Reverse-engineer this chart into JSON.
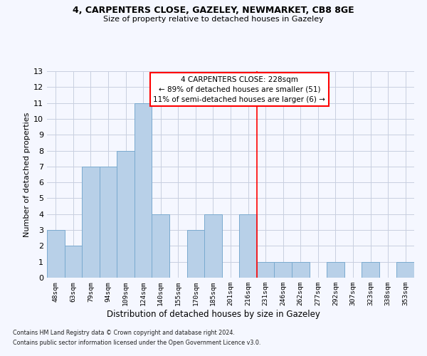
{
  "title1": "4, CARPENTERS CLOSE, GAZELEY, NEWMARKET, CB8 8GE",
  "title2": "Size of property relative to detached houses in Gazeley",
  "xlabel": "Distribution of detached houses by size in Gazeley",
  "ylabel": "Number of detached properties",
  "categories": [
    "48sqm",
    "63sqm",
    "79sqm",
    "94sqm",
    "109sqm",
    "124sqm",
    "140sqm",
    "155sqm",
    "170sqm",
    "185sqm",
    "201sqm",
    "216sqm",
    "231sqm",
    "246sqm",
    "262sqm",
    "277sqm",
    "292sqm",
    "307sqm",
    "323sqm",
    "338sqm",
    "353sqm"
  ],
  "values": [
    3,
    2,
    7,
    7,
    8,
    11,
    4,
    0,
    3,
    4,
    0,
    4,
    1,
    1,
    1,
    0,
    1,
    0,
    1,
    0,
    1
  ],
  "bar_color": "#b8d0e8",
  "bar_edgecolor": "#7aaacf",
  "redline_index": 12,
  "annotation_title": "4 CARPENTERS CLOSE: 228sqm",
  "annotation_line1": "← 89% of detached houses are smaller (51)",
  "annotation_line2": "11% of semi-detached houses are larger (6) →",
  "ylim": [
    0,
    13
  ],
  "yticks": [
    0,
    1,
    2,
    3,
    4,
    5,
    6,
    7,
    8,
    9,
    10,
    11,
    12,
    13
  ],
  "footer1": "Contains HM Land Registry data © Crown copyright and database right 2024.",
  "footer2": "Contains public sector information licensed under the Open Government Licence v3.0.",
  "bg_color": "#f5f7ff"
}
